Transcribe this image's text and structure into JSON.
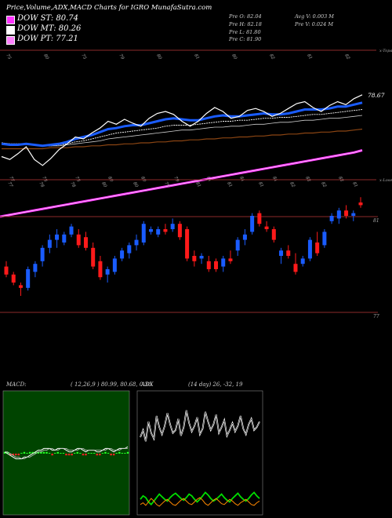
{
  "header": "Price,Volume,ADX,MACD Charts for IGRO MunafaSutra.com",
  "legend": [
    {
      "label": "DOW ST: 80.74",
      "color": "#ff33ff"
    },
    {
      "label": "DOW MT: 80.26",
      "color": "#ffffff"
    },
    {
      "label": "DOW PT: 77.21",
      "color": "#ff80ff"
    }
  ],
  "stats": {
    "open": "Pre  O: 82.04",
    "high": "Pre  H: 82.18",
    "low": "Pre  L: 81.80",
    "close": "Pre  C: 81.90",
    "avg_vol": "Avg V: 0.003 M",
    "pre_vol": "Pre  V: 0.024  M"
  },
  "colors": {
    "up": "#1a5cff",
    "down": "#ff1a1a",
    "ema_fast": "#1a5cff",
    "ema_long": "#8b4513",
    "adx_green": "#00dd00",
    "adx_orange": "#ff8800"
  },
  "chart_data": [
    {
      "type": "line",
      "name": "ema-panel",
      "top_label": "x-Topa",
      "right_label": "78.67",
      "top_ticks": [
        "75",
        "80",
        "75",
        "79",
        "80",
        "81",
        "80",
        "82",
        "81",
        "82"
      ],
      "bottom_ticks": [
        "77",
        "78",
        "78",
        "80",
        "80",
        "79",
        "81",
        "81",
        "81",
        "82",
        "82"
      ],
      "series": [
        {
          "values": [
            76.5,
            76.2,
            76.8,
            77.5,
            76.2,
            75.6,
            76.3,
            77.2,
            77.8,
            78.5,
            78.3,
            78.9,
            79.4,
            80.1,
            79.8,
            80.3,
            79.9,
            79.6,
            80.4,
            80.9,
            81.1,
            80.8,
            80.1,
            79.6,
            80.1,
            80.9,
            81.5,
            81.1,
            80.4,
            80.6,
            81.2,
            81.4,
            81.1,
            80.6,
            80.9,
            81.4,
            81.9,
            82.1,
            81.5,
            81.1,
            81.7,
            82.1,
            81.8,
            82.4,
            82.8
          ]
        },
        {
          "values": [
            77.8,
            77.7,
            77.7,
            77.8,
            77.7,
            77.6,
            77.7,
            77.8,
            78.0,
            78.3,
            78.5,
            78.7,
            79.0,
            79.3,
            79.4,
            79.6,
            79.7,
            79.7,
            79.9,
            80.1,
            80.3,
            80.4,
            80.3,
            80.2,
            80.2,
            80.4,
            80.6,
            80.7,
            80.6,
            80.6,
            80.7,
            80.8,
            80.9,
            80.8,
            80.8,
            80.9,
            81.1,
            81.3,
            81.3,
            81.3,
            81.4,
            81.6,
            81.6,
            81.8,
            82.0
          ]
        },
        {
          "values": [
            77.9,
            77.8,
            77.8,
            77.8,
            77.7,
            77.6,
            77.6,
            77.7,
            77.8,
            78.0,
            78.1,
            78.3,
            78.5,
            78.7,
            78.9,
            79.0,
            79.1,
            79.2,
            79.3,
            79.4,
            79.6,
            79.7,
            79.7,
            79.7,
            79.8,
            79.9,
            80.0,
            80.1,
            80.1,
            80.2,
            80.2,
            80.3,
            80.4,
            80.4,
            80.5,
            80.5,
            80.6,
            80.7,
            80.8,
            80.8,
            80.9,
            81.0,
            81.1,
            81.2,
            81.3
          ]
        },
        {
          "values": [
            77.9,
            77.8,
            77.8,
            77.8,
            77.7,
            77.6,
            77.6,
            77.6,
            77.7,
            77.8,
            77.9,
            78.0,
            78.1,
            78.3,
            78.4,
            78.5,
            78.6,
            78.7,
            78.8,
            78.9,
            79.0,
            79.1,
            79.2,
            79.2,
            79.3,
            79.4,
            79.5,
            79.5,
            79.6,
            79.6,
            79.7,
            79.8,
            79.8,
            79.9,
            80.0,
            80.0,
            80.1,
            80.2,
            80.2,
            80.3,
            80.4,
            80.4,
            80.5,
            80.6,
            80.7
          ]
        },
        {
          "values": [
            77.3,
            77.3,
            77.3,
            77.3,
            77.3,
            77.3,
            77.4,
            77.4,
            77.4,
            77.5,
            77.5,
            77.6,
            77.6,
            77.7,
            77.7,
            77.8,
            77.8,
            77.9,
            77.9,
            78.0,
            78.0,
            78.1,
            78.1,
            78.2,
            78.2,
            78.3,
            78.3,
            78.4,
            78.4,
            78.5,
            78.5,
            78.6,
            78.6,
            78.7,
            78.7,
            78.8,
            78.8,
            78.9,
            78.9,
            79.0,
            79.0,
            79.1,
            79.1,
            79.2,
            79.3
          ]
        },
        {
          "values": [
            76.4,
            76.6,
            76.8,
            77.0,
            77.2,
            77.4,
            77.6,
            77.8,
            78.0,
            78.2,
            78.4,
            78.6,
            78.8,
            79.0,
            79.2,
            79.4,
            79.6,
            79.8,
            80.0,
            80.2,
            80.4,
            80.6,
            80.8,
            81.0,
            81.2,
            81.4,
            81.6,
            81.8,
            82.0,
            82.2,
            82.4,
            82.6,
            82.8,
            83.0,
            83.2,
            83.4,
            83.6,
            83.8,
            84.0,
            84.2,
            84.4,
            84.6,
            84.8,
            85.0,
            85.3
          ]
        }
      ]
    },
    {
      "type": "candlestick",
      "name": "price-panel",
      "top_label": "x-Loseta",
      "levels": [
        "81",
        "77"
      ],
      "top_ticks": [
        "77",
        "78",
        "78",
        "80",
        "80",
        "79",
        "81",
        "81",
        "81",
        "82",
        "82",
        "81"
      ],
      "ohlc": [
        [
          79.6,
          79.8,
          79.2,
          79.3
        ],
        [
          79.3,
          79.4,
          78.9,
          79.0
        ],
        [
          78.9,
          79.0,
          78.5,
          78.8
        ],
        [
          78.8,
          79.6,
          78.7,
          79.5
        ],
        [
          79.4,
          79.8,
          79.2,
          79.7
        ],
        [
          79.8,
          80.4,
          79.6,
          80.3
        ],
        [
          80.3,
          80.8,
          80.1,
          80.6
        ],
        [
          80.6,
          81.0,
          80.3,
          80.8
        ],
        [
          80.5,
          80.9,
          80.4,
          80.8
        ],
        [
          80.8,
          81.2,
          80.7,
          81.1
        ],
        [
          80.8,
          81.0,
          80.3,
          80.4
        ],
        [
          80.7,
          80.9,
          80.2,
          80.3
        ],
        [
          80.3,
          80.5,
          79.5,
          79.6
        ],
        [
          79.8,
          80.0,
          79.1,
          79.2
        ],
        [
          79.3,
          79.6,
          79.0,
          79.5
        ],
        [
          79.4,
          80.0,
          79.3,
          79.9
        ],
        [
          79.9,
          80.3,
          79.8,
          80.2
        ],
        [
          80.1,
          80.5,
          79.9,
          80.4
        ],
        [
          80.4,
          80.8,
          80.2,
          80.6
        ],
        [
          80.5,
          81.3,
          80.4,
          81.2
        ],
        [
          80.9,
          81.1,
          80.8,
          81.0
        ],
        [
          80.8,
          81.1,
          80.7,
          81.0
        ],
        [
          81.0,
          81.2,
          80.8,
          80.9
        ],
        [
          81.0,
          81.4,
          80.9,
          81.2
        ],
        [
          81.2,
          81.3,
          80.6,
          80.7
        ],
        [
          81.0,
          81.1,
          79.8,
          79.9
        ],
        [
          80.0,
          80.2,
          79.6,
          79.8
        ],
        [
          79.9,
          80.1,
          79.7,
          80.0
        ],
        [
          79.8,
          80.0,
          79.4,
          79.5
        ],
        [
          79.8,
          79.9,
          79.4,
          79.5
        ],
        [
          79.6,
          80.0,
          79.4,
          79.9
        ],
        [
          79.9,
          80.2,
          79.7,
          79.8
        ],
        [
          80.2,
          80.7,
          80.0,
          80.6
        ],
        [
          80.6,
          81.0,
          80.4,
          80.8
        ],
        [
          80.9,
          81.6,
          80.8,
          81.5
        ],
        [
          81.6,
          81.7,
          81.1,
          81.2
        ],
        [
          81.1,
          81.3,
          80.9,
          81.0
        ],
        [
          81.0,
          81.1,
          80.5,
          80.6
        ],
        [
          80.0,
          80.3,
          79.7,
          80.2
        ],
        [
          80.2,
          80.4,
          79.9,
          80.0
        ],
        [
          79.7,
          80.1,
          79.3,
          79.4
        ],
        [
          79.7,
          80.0,
          79.6,
          79.9
        ],
        [
          79.9,
          80.7,
          79.8,
          80.6
        ],
        [
          80.5,
          80.9,
          80.0,
          80.1
        ],
        [
          80.4,
          81.0,
          80.3,
          80.9
        ],
        [
          81.3,
          81.6,
          81.2,
          81.5
        ],
        [
          81.4,
          81.8,
          81.2,
          81.7
        ],
        [
          81.7,
          81.9,
          81.4,
          81.5
        ],
        [
          81.5,
          81.7,
          81.3,
          81.6
        ],
        [
          82.0,
          82.2,
          81.8,
          81.9
        ]
      ]
    },
    {
      "type": "line",
      "name": "macd-panel",
      "label": "MACD",
      "params": "( 12,26,9 ) 80.99, 80.68, 0.36",
      "series": [
        {
          "values": [
            0.1,
            0.0,
            -0.1,
            -0.2,
            -0.3,
            -0.3,
            -0.3,
            -0.2,
            -0.2,
            -0.1,
            0.0,
            0.1,
            0.2,
            0.2,
            0.3,
            0.3,
            0.3,
            0.2,
            0.2,
            0.3,
            0.3,
            0.3,
            0.2,
            0.1,
            0.1,
            0.2,
            0.3,
            0.3,
            0.2,
            0.1,
            0.2,
            0.2,
            0.2,
            0.1,
            0.1,
            0.2,
            0.3,
            0.3,
            0.2,
            0.1,
            0.2,
            0.3,
            0.3,
            0.3,
            0.4
          ]
        },
        {
          "values": [
            0.1,
            0.1,
            0.0,
            -0.1,
            -0.2,
            -0.2,
            -0.3,
            -0.3,
            -0.2,
            -0.2,
            -0.1,
            0.0,
            0.1,
            0.1,
            0.2,
            0.2,
            0.3,
            0.3,
            0.2,
            0.2,
            0.3,
            0.3,
            0.3,
            0.2,
            0.2,
            0.2,
            0.2,
            0.3,
            0.3,
            0.2,
            0.2,
            0.2,
            0.2,
            0.2,
            0.2,
            0.2,
            0.2,
            0.3,
            0.3,
            0.2,
            0.2,
            0.2,
            0.3,
            0.3,
            0.3
          ]
        }
      ],
      "histogram": [
        0.1,
        0.1,
        -0.1,
        -0.1,
        -0.1,
        -0.1,
        0.0,
        0.1,
        0.0,
        0.1,
        0.1,
        0.1,
        0.1,
        0.1,
        0.1,
        0.1,
        0.0,
        -0.1,
        0.0,
        0.1,
        0.0,
        0.0,
        -0.1,
        -0.1,
        -0.1,
        0.0,
        0.1,
        0.0,
        -0.1,
        -0.1,
        0.0,
        0.0,
        0.0,
        -0.1,
        -0.1,
        0.0,
        0.1,
        0.0,
        -0.1,
        -0.1,
        0.0,
        0.1,
        0.0,
        0.0,
        0.1
      ]
    },
    {
      "type": "line",
      "name": "adx-panel",
      "label": "ADX",
      "params": "(14 day) 26, -32, 19",
      "series": [
        {
          "values": [
            55,
            60,
            52,
            66,
            58,
            54,
            70,
            62,
            57,
            63,
            72,
            64,
            58,
            60,
            68,
            56,
            62,
            74,
            65,
            59,
            63,
            69,
            57,
            61,
            73,
            66,
            60,
            64,
            71,
            58,
            62,
            67,
            56,
            60,
            65,
            59,
            63,
            70,
            61,
            57,
            64,
            68,
            60,
            62,
            66
          ]
        },
        {
          "values": [
            18,
            22,
            20,
            15,
            12,
            16,
            20,
            24,
            21,
            18,
            16,
            20,
            23,
            25,
            22,
            19,
            17,
            20,
            24,
            22,
            18,
            15,
            18,
            22,
            26,
            23,
            19,
            16,
            18,
            21,
            24,
            20,
            17,
            15,
            19,
            22,
            25,
            21,
            18,
            16,
            19,
            23,
            26,
            22,
            19
          ]
        },
        {
          "values": [
            12,
            14,
            11,
            15,
            19,
            16,
            12,
            10,
            13,
            16,
            18,
            15,
            12,
            11,
            14,
            17,
            19,
            16,
            13,
            12,
            15,
            18,
            20,
            17,
            13,
            11,
            14,
            17,
            19,
            16,
            13,
            12,
            15,
            18,
            16,
            13,
            11,
            14,
            16,
            18,
            15,
            12,
            11,
            14,
            16
          ]
        }
      ]
    }
  ]
}
